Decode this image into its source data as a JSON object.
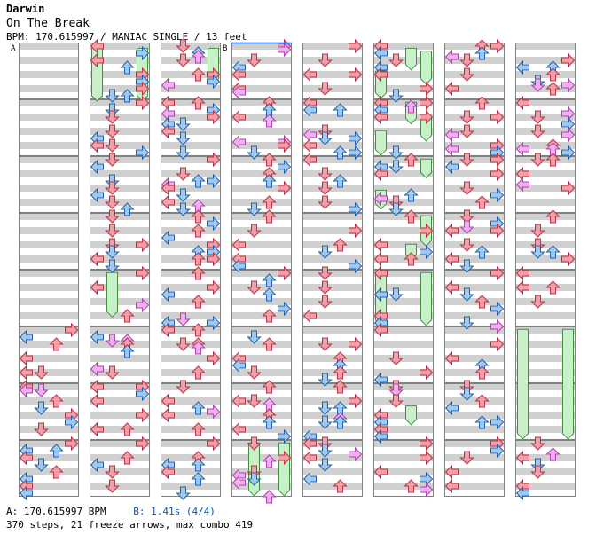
{
  "song": {
    "artist": "Darwin",
    "title": "On The Break",
    "meta_line": "BPM: 170.615997 / MANIAC SINGLE / 13 feet"
  },
  "markers": {
    "a": "A",
    "b": "B"
  },
  "footer": {
    "bpm_note": "A: 170.615997 BPM",
    "stop_note": "B: 1.41s (4/4)",
    "stats": "370 steps, 21 freeze arrows, max combo 419"
  },
  "colors": {
    "quarter": "#f0a0a8",
    "eighth": "#a0c8f0",
    "sixteenth": "#f0b0f0",
    "freeze": "#c8f0c8",
    "freeze_stroke": "#409040",
    "stripe": "#d0d0d0",
    "frame": "#808080"
  },
  "chart_data": {
    "type": "step-chart",
    "columns": 8,
    "measures_per_column": 8,
    "lanes": [
      "left",
      "down",
      "up",
      "right"
    ],
    "bpm": 170.615997,
    "difficulty": "MANIAC SINGLE",
    "feet": 13,
    "steps": 370,
    "freeze_arrows": 21,
    "max_combo": 419
  }
}
